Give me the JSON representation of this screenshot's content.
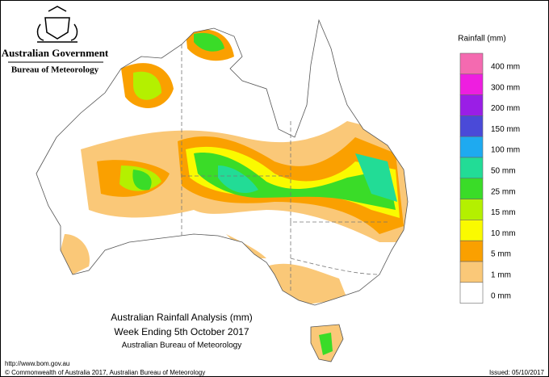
{
  "header": {
    "government": "Australian Government",
    "bureau": "Bureau of Meteorology"
  },
  "legend": {
    "title": "Rainfall (mm)",
    "items": [
      {
        "label": "400 mm",
        "color": "#f46ab0"
      },
      {
        "label": "300 mm",
        "color": "#ee1ee0"
      },
      {
        "label": "200 mm",
        "color": "#9a1ee6"
      },
      {
        "label": "150 mm",
        "color": "#4a4ad8"
      },
      {
        "label": "100 mm",
        "color": "#1eaaf0"
      },
      {
        "label": "50 mm",
        "color": "#22dc96"
      },
      {
        "label": "25 mm",
        "color": "#3adc28"
      },
      {
        "label": "15 mm",
        "color": "#b4f000"
      },
      {
        "label": "10 mm",
        "color": "#fafa00"
      },
      {
        "label": "5 mm",
        "color": "#faa000"
      },
      {
        "label": "1 mm",
        "color": "#fac878"
      },
      {
        "label": "0 mm",
        "color": "#ffffff"
      }
    ]
  },
  "map_title": {
    "lines": [
      "Australian Rainfall Analysis (mm)",
      "Week Ending 5th October 2017",
      "Australian Bureau of Meteorology"
    ]
  },
  "footer": {
    "url": "http://www.bom.gov.au",
    "copyright": "© Commonwealth of Australia 2017, Australian Bureau of Meteorology",
    "issued": "Issued: 05/10/2017"
  }
}
